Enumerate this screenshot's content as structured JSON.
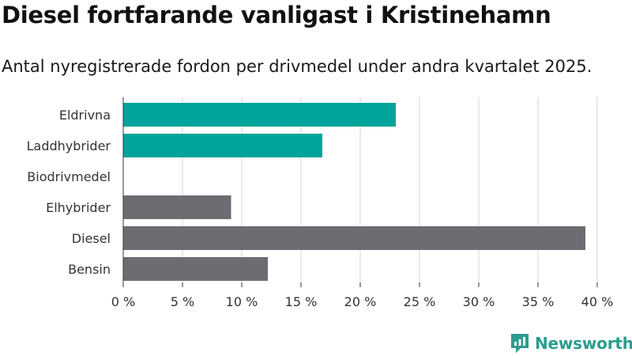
{
  "title": "Diesel fortfarande vanligast i Kristinehamn",
  "subtitle": "Antal nyregistrerade fordon per drivmedel under andra kvartalet 2025.",
  "brand": "Newsworthy",
  "colors": {
    "highlight": "#00a49a",
    "default": "#6d6c72",
    "grid": "#d6d6d6",
    "brand": "#2a9d8f"
  },
  "chart_data": {
    "type": "bar",
    "orientation": "horizontal",
    "categories": [
      "Eldrivna",
      "Laddhybrider",
      "Biodrivmedel",
      "Elhybrider",
      "Diesel",
      "Bensin"
    ],
    "values": [
      23,
      16.8,
      0,
      9.1,
      39,
      12.2
    ],
    "highlighted": [
      true,
      true,
      false,
      false,
      false,
      false
    ],
    "xlim": [
      0,
      40
    ],
    "xticks": [
      0,
      5,
      10,
      15,
      20,
      25,
      30,
      35,
      40
    ],
    "tick_labels": [
      "0 %",
      "5 %",
      "10 %",
      "15 %",
      "20 %",
      "25 %",
      "30 %",
      "35 %",
      "40 %"
    ],
    "grid": true
  }
}
